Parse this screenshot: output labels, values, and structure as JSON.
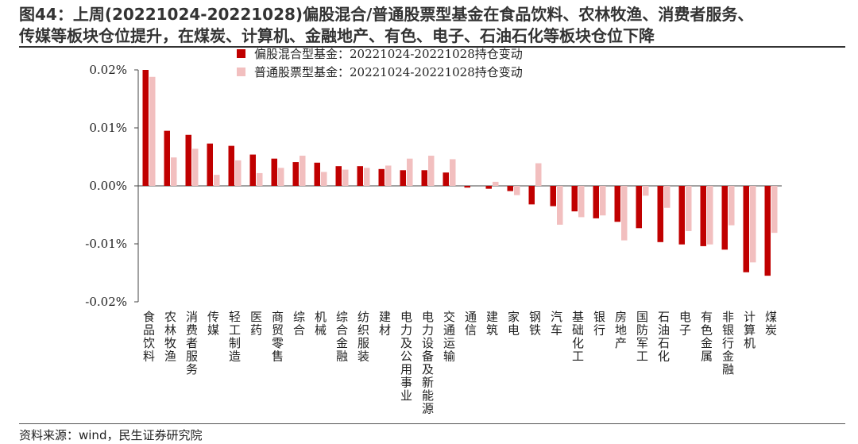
{
  "title_line1": "图44：上周(20221024-20221028)偏股混合/普通股票型基金在食品饮料、农林牧渔、消费者服务、",
  "title_line2": "传媒等板块仓位提升，在煤炭、计算机、金融地产、有色、电子、石油石化等板块仓位下降",
  "source": "资料来源：wind，民生证券研究院",
  "colors": {
    "series1": "#C00000",
    "series2": "#F2BFBF"
  },
  "chart_data": {
    "type": "bar",
    "categories": [
      "食品饮料",
      "农林牧渔",
      "消费者服务",
      "传媒",
      "轻工制造",
      "医药",
      "商贸零售",
      "综合",
      "机械",
      "综合金融",
      "纺织服装",
      "建材",
      "电力及公用事业",
      "电力设备及新能源",
      "交通运输",
      "通信",
      "建筑",
      "家电",
      "钢铁",
      "汽车",
      "基础化工",
      "银行",
      "房地产",
      "国防军工",
      "石油石化",
      "电子",
      "有色金属",
      "非银行金融",
      "计算机",
      "煤炭"
    ],
    "series": [
      {
        "name": "偏股混合型基金：20221024-20221028持仓变动",
        "values": [
          0.02,
          0.0095,
          0.0088,
          0.0073,
          0.0069,
          0.0054,
          0.0047,
          0.0041,
          0.004,
          0.0034,
          0.0034,
          0.0029,
          0.0027,
          0.0027,
          0.0023,
          -0.0003,
          -0.0005,
          -0.0009,
          -0.0032,
          -0.0035,
          -0.0044,
          -0.0056,
          -0.0062,
          -0.0073,
          -0.0097,
          -0.0101,
          -0.0104,
          -0.011,
          -0.0149,
          -0.0155
        ]
      },
      {
        "name": "普通股票型基金：20221024-20221028持仓变动",
        "values": [
          0.0188,
          0.0049,
          0.0064,
          0.0019,
          0.0044,
          0.0022,
          0.0031,
          0.0052,
          0.0024,
          0.0028,
          0.0031,
          0.0035,
          0.0047,
          0.0052,
          0.0046,
          0.0,
          0.0007,
          -0.0016,
          0.0039,
          -0.0067,
          -0.0054,
          -0.0051,
          -0.0094,
          -0.0017,
          -0.0038,
          -0.0078,
          -0.0101,
          -0.0068,
          -0.0132,
          -0.0081
        ]
      }
    ],
    "yticks": [
      "0.02%",
      "0.01%",
      "0.00%",
      "-0.01%",
      "-0.02%"
    ],
    "ylim": [
      -0.02,
      0.02
    ],
    "legend_position": "top-center",
    "grid": false
  }
}
